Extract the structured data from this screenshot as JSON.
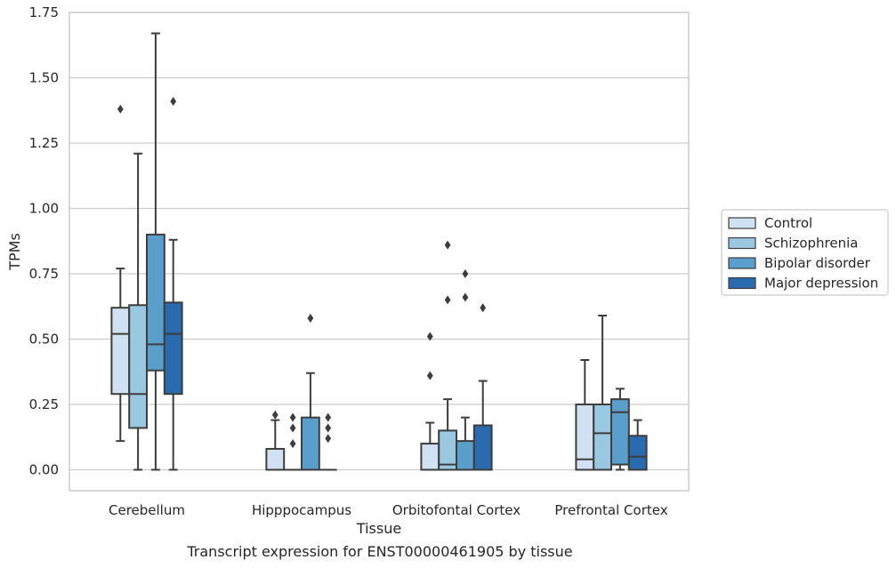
{
  "chart_data": {
    "type": "box",
    "title": "",
    "xlabel": "Tissue",
    "ylabel": "TPMs",
    "caption": "Transcript expression for ENST00000461905 by tissue",
    "ylim": [
      -0.08,
      1.75
    ],
    "yticks": [
      0.0,
      0.25,
      0.5,
      0.75,
      1.0,
      1.25,
      1.5,
      1.75
    ],
    "ytick_labels": [
      "0.00",
      "0.25",
      "0.50",
      "0.75",
      "1.00",
      "1.25",
      "1.50",
      "1.75"
    ],
    "grid": true,
    "legend_position": "right",
    "categories": [
      "Cerebellum",
      "Hipppocampus",
      "Orbitofontal Cortex",
      "Prefrontal Cortex"
    ],
    "series": [
      {
        "name": "Control",
        "color": "#d0e1f2",
        "boxes": [
          {
            "whislo": 0.11,
            "q1": 0.29,
            "med": 0.52,
            "q3": 0.62,
            "whishi": 0.77,
            "fliers": [
              1.38
            ]
          },
          {
            "whislo": 0.0,
            "q1": 0.0,
            "med": 0.0,
            "q3": 0.08,
            "whishi": 0.19,
            "fliers": [
              0.21
            ]
          },
          {
            "whislo": 0.0,
            "q1": 0.0,
            "med": 0.0,
            "q3": 0.1,
            "whishi": 0.18,
            "fliers": [
              0.36,
              0.51
            ]
          },
          {
            "whislo": 0.0,
            "q1": 0.0,
            "med": 0.04,
            "q3": 0.25,
            "whishi": 0.42,
            "fliers": []
          }
        ]
      },
      {
        "name": "Schizophrenia",
        "color": "#9ac8e0",
        "boxes": [
          {
            "whislo": 0.0,
            "q1": 0.16,
            "med": 0.29,
            "q3": 0.63,
            "whishi": 1.21,
            "fliers": []
          },
          {
            "whislo": 0.0,
            "q1": 0.0,
            "med": 0.0,
            "q3": 0.0,
            "whishi": 0.0,
            "fliers": [
              0.1,
              0.16,
              0.2
            ]
          },
          {
            "whislo": 0.0,
            "q1": 0.0,
            "med": 0.02,
            "q3": 0.15,
            "whishi": 0.27,
            "fliers": [
              0.65,
              0.86
            ]
          },
          {
            "whislo": 0.0,
            "q1": 0.0,
            "med": 0.14,
            "q3": 0.25,
            "whishi": 0.59,
            "fliers": []
          }
        ]
      },
      {
        "name": "Bipolar disorder",
        "color": "#5a9fcb",
        "boxes": [
          {
            "whislo": 0.0,
            "q1": 0.38,
            "med": 0.48,
            "q3": 0.9,
            "whishi": 1.67,
            "fliers": []
          },
          {
            "whislo": 0.0,
            "q1": 0.0,
            "med": 0.0,
            "q3": 0.2,
            "whishi": 0.37,
            "fliers": [
              0.58
            ]
          },
          {
            "whislo": 0.0,
            "q1": 0.0,
            "med": 0.0,
            "q3": 0.11,
            "whishi": 0.2,
            "fliers": [
              0.66,
              0.75
            ]
          },
          {
            "whislo": 0.0,
            "q1": 0.02,
            "med": 0.22,
            "q3": 0.27,
            "whishi": 0.31,
            "fliers": []
          }
        ]
      },
      {
        "name": "Major depression",
        "color": "#2a6aae",
        "boxes": [
          {
            "whislo": 0.0,
            "q1": 0.29,
            "med": 0.52,
            "q3": 0.64,
            "whishi": 0.88,
            "fliers": [
              1.41
            ]
          },
          {
            "whislo": 0.0,
            "q1": 0.0,
            "med": 0.0,
            "q3": 0.0,
            "whishi": 0.0,
            "fliers": [
              0.12,
              0.16,
              0.2
            ]
          },
          {
            "whislo": 0.0,
            "q1": 0.0,
            "med": 0.0,
            "q3": 0.17,
            "whishi": 0.34,
            "fliers": [
              0.62
            ]
          },
          {
            "whislo": 0.0,
            "q1": 0.0,
            "med": 0.05,
            "q3": 0.13,
            "whishi": 0.19,
            "fliers": []
          }
        ]
      }
    ]
  }
}
